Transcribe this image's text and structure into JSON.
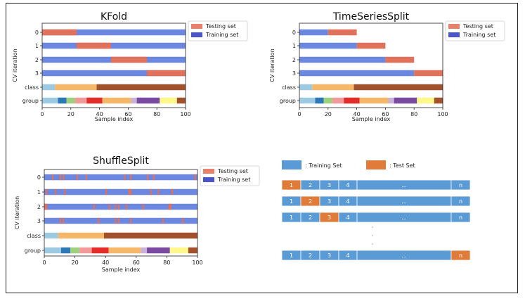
{
  "colors": {
    "training": "#6b87df",
    "testing": "#e0715a",
    "legend_training": "#4a56c8",
    "legend_testing": "#e8806a",
    "class_colors": [
      "#9ecae1",
      "#f5b86a",
      "#a0522d"
    ],
    "group_colors": [
      "#9ecae1",
      "#2f78b5",
      "#9ed07e",
      "#f29a9a",
      "#e42d2a",
      "#f5b86a",
      "#c8b2d8",
      "#7a4aa0",
      "#fdf78c",
      "#a0522d"
    ],
    "diag_train": "#5b9bd5",
    "diag_test": "#e07b39"
  },
  "chart_data": [
    {
      "type": "bar",
      "title": "KFold",
      "xlabel": "Sample index",
      "ylabel": "CV iteration",
      "xlim": [
        0,
        100
      ],
      "xticks": [
        "0",
        "20",
        "40",
        "60",
        "80",
        "100"
      ],
      "row_labels": [
        "0",
        "1",
        "2",
        "3",
        "class",
        "group"
      ],
      "legend": [
        "Testing set",
        "Training set"
      ],
      "legend_position": "upper-right-outside",
      "splits": [
        {
          "test": [
            [
              0,
              24
            ]
          ]
        },
        {
          "test": [
            [
              24,
              48
            ]
          ]
        },
        {
          "test": [
            [
              48,
              73
            ]
          ]
        },
        {
          "test": [
            [
              73,
              100
            ]
          ]
        }
      ],
      "class_segments": [
        [
          0,
          9,
          0
        ],
        [
          9,
          38,
          1
        ],
        [
          38,
          100,
          2
        ]
      ],
      "group_segments": [
        [
          0,
          11,
          0
        ],
        [
          11,
          17,
          1
        ],
        [
          17,
          23,
          2
        ],
        [
          23,
          31,
          3
        ],
        [
          31,
          42,
          4
        ],
        [
          42,
          62,
          5
        ],
        [
          62,
          66,
          6
        ],
        [
          66,
          82,
          7
        ],
        [
          82,
          94,
          8
        ],
        [
          94,
          100,
          9
        ]
      ]
    },
    {
      "type": "bar",
      "title": "TimeSeriesSplit",
      "xlabel": "Sample index",
      "ylabel": "CV iteration",
      "xlim": [
        0,
        100
      ],
      "xticks": [
        "0",
        "20",
        "40",
        "60",
        "80",
        "100"
      ],
      "row_labels": [
        "0",
        "1",
        "2",
        "3",
        "class",
        "group"
      ],
      "legend": [
        "Testing set",
        "Training set"
      ],
      "legend_position": "upper-right-outside",
      "splits": [
        {
          "train_end": 20,
          "test": [
            [
              20,
              40
            ]
          ]
        },
        {
          "train_end": 40,
          "test": [
            [
              40,
              60
            ]
          ]
        },
        {
          "train_end": 60,
          "test": [
            [
              60,
              80
            ]
          ]
        },
        {
          "train_end": 80,
          "test": [
            [
              80,
              100
            ]
          ]
        }
      ],
      "class_segments": [
        [
          0,
          9,
          0
        ],
        [
          9,
          38,
          1
        ],
        [
          38,
          100,
          2
        ]
      ],
      "group_segments": [
        [
          0,
          11,
          0
        ],
        [
          11,
          17,
          1
        ],
        [
          17,
          23,
          2
        ],
        [
          23,
          31,
          3
        ],
        [
          31,
          42,
          4
        ],
        [
          42,
          62,
          5
        ],
        [
          62,
          66,
          6
        ],
        [
          66,
          82,
          7
        ],
        [
          82,
          94,
          8
        ],
        [
          94,
          100,
          9
        ]
      ]
    },
    {
      "type": "bar",
      "title": "ShuffleSplit",
      "xlabel": "Sample index",
      "ylabel": "CV iteration",
      "xlim": [
        0,
        100
      ],
      "xticks": [
        "0",
        "20",
        "40",
        "60",
        "80",
        "100"
      ],
      "row_labels": [
        "0",
        "1",
        "2",
        "3",
        "class",
        "group"
      ],
      "legend": [
        "Testing set",
        "Training set"
      ],
      "legend_position": "upper-right-outside",
      "splits": [
        {
          "test": [
            [
              5,
              6
            ],
            [
              10,
              11
            ],
            [
              12,
              13
            ],
            [
              21,
              22
            ],
            [
              27,
              28
            ],
            [
              52,
              53
            ],
            [
              56,
              57
            ],
            [
              67,
              68
            ],
            [
              71,
              72
            ],
            [
              98,
              99
            ]
          ]
        },
        {
          "test": [
            [
              1,
              2
            ],
            [
              7,
              8
            ],
            [
              13,
              14
            ],
            [
              40,
              41
            ],
            [
              55,
              57
            ],
            [
              69,
              70
            ],
            [
              74,
              75
            ],
            [
              83,
              84
            ]
          ]
        },
        {
          "test": [
            [
              0,
              2
            ],
            [
              32,
              33
            ],
            [
              42,
              43
            ],
            [
              46,
              47
            ],
            [
              48,
              49
            ],
            [
              53,
              54
            ],
            [
              64,
              65
            ],
            [
              81,
              83
            ]
          ]
        },
        {
          "test": [
            [
              10,
              11
            ],
            [
              12,
              13
            ],
            [
              35,
              36
            ],
            [
              46,
              47
            ],
            [
              48,
              49
            ],
            [
              56,
              57
            ],
            [
              77,
              78
            ],
            [
              90,
              91
            ]
          ]
        }
      ],
      "class_segments": [
        [
          0,
          9,
          0
        ],
        [
          9,
          39,
          1
        ],
        [
          39,
          100,
          2
        ]
      ],
      "group_segments": [
        [
          0,
          11,
          0
        ],
        [
          11,
          17,
          1
        ],
        [
          17,
          23,
          2
        ],
        [
          23,
          31,
          3
        ],
        [
          31,
          42,
          4
        ],
        [
          42,
          63,
          5
        ],
        [
          63,
          67,
          6
        ],
        [
          67,
          82,
          7
        ],
        [
          82,
          94,
          8
        ],
        [
          94,
          100,
          9
        ]
      ]
    }
  ],
  "diagram": {
    "legend_train": ": Training Set",
    "legend_test": ": Test Set",
    "cells": [
      "1",
      "2",
      "3",
      "4",
      "...",
      "n"
    ],
    "test_positions": [
      0,
      1,
      2,
      5
    ],
    "dots": "·"
  }
}
